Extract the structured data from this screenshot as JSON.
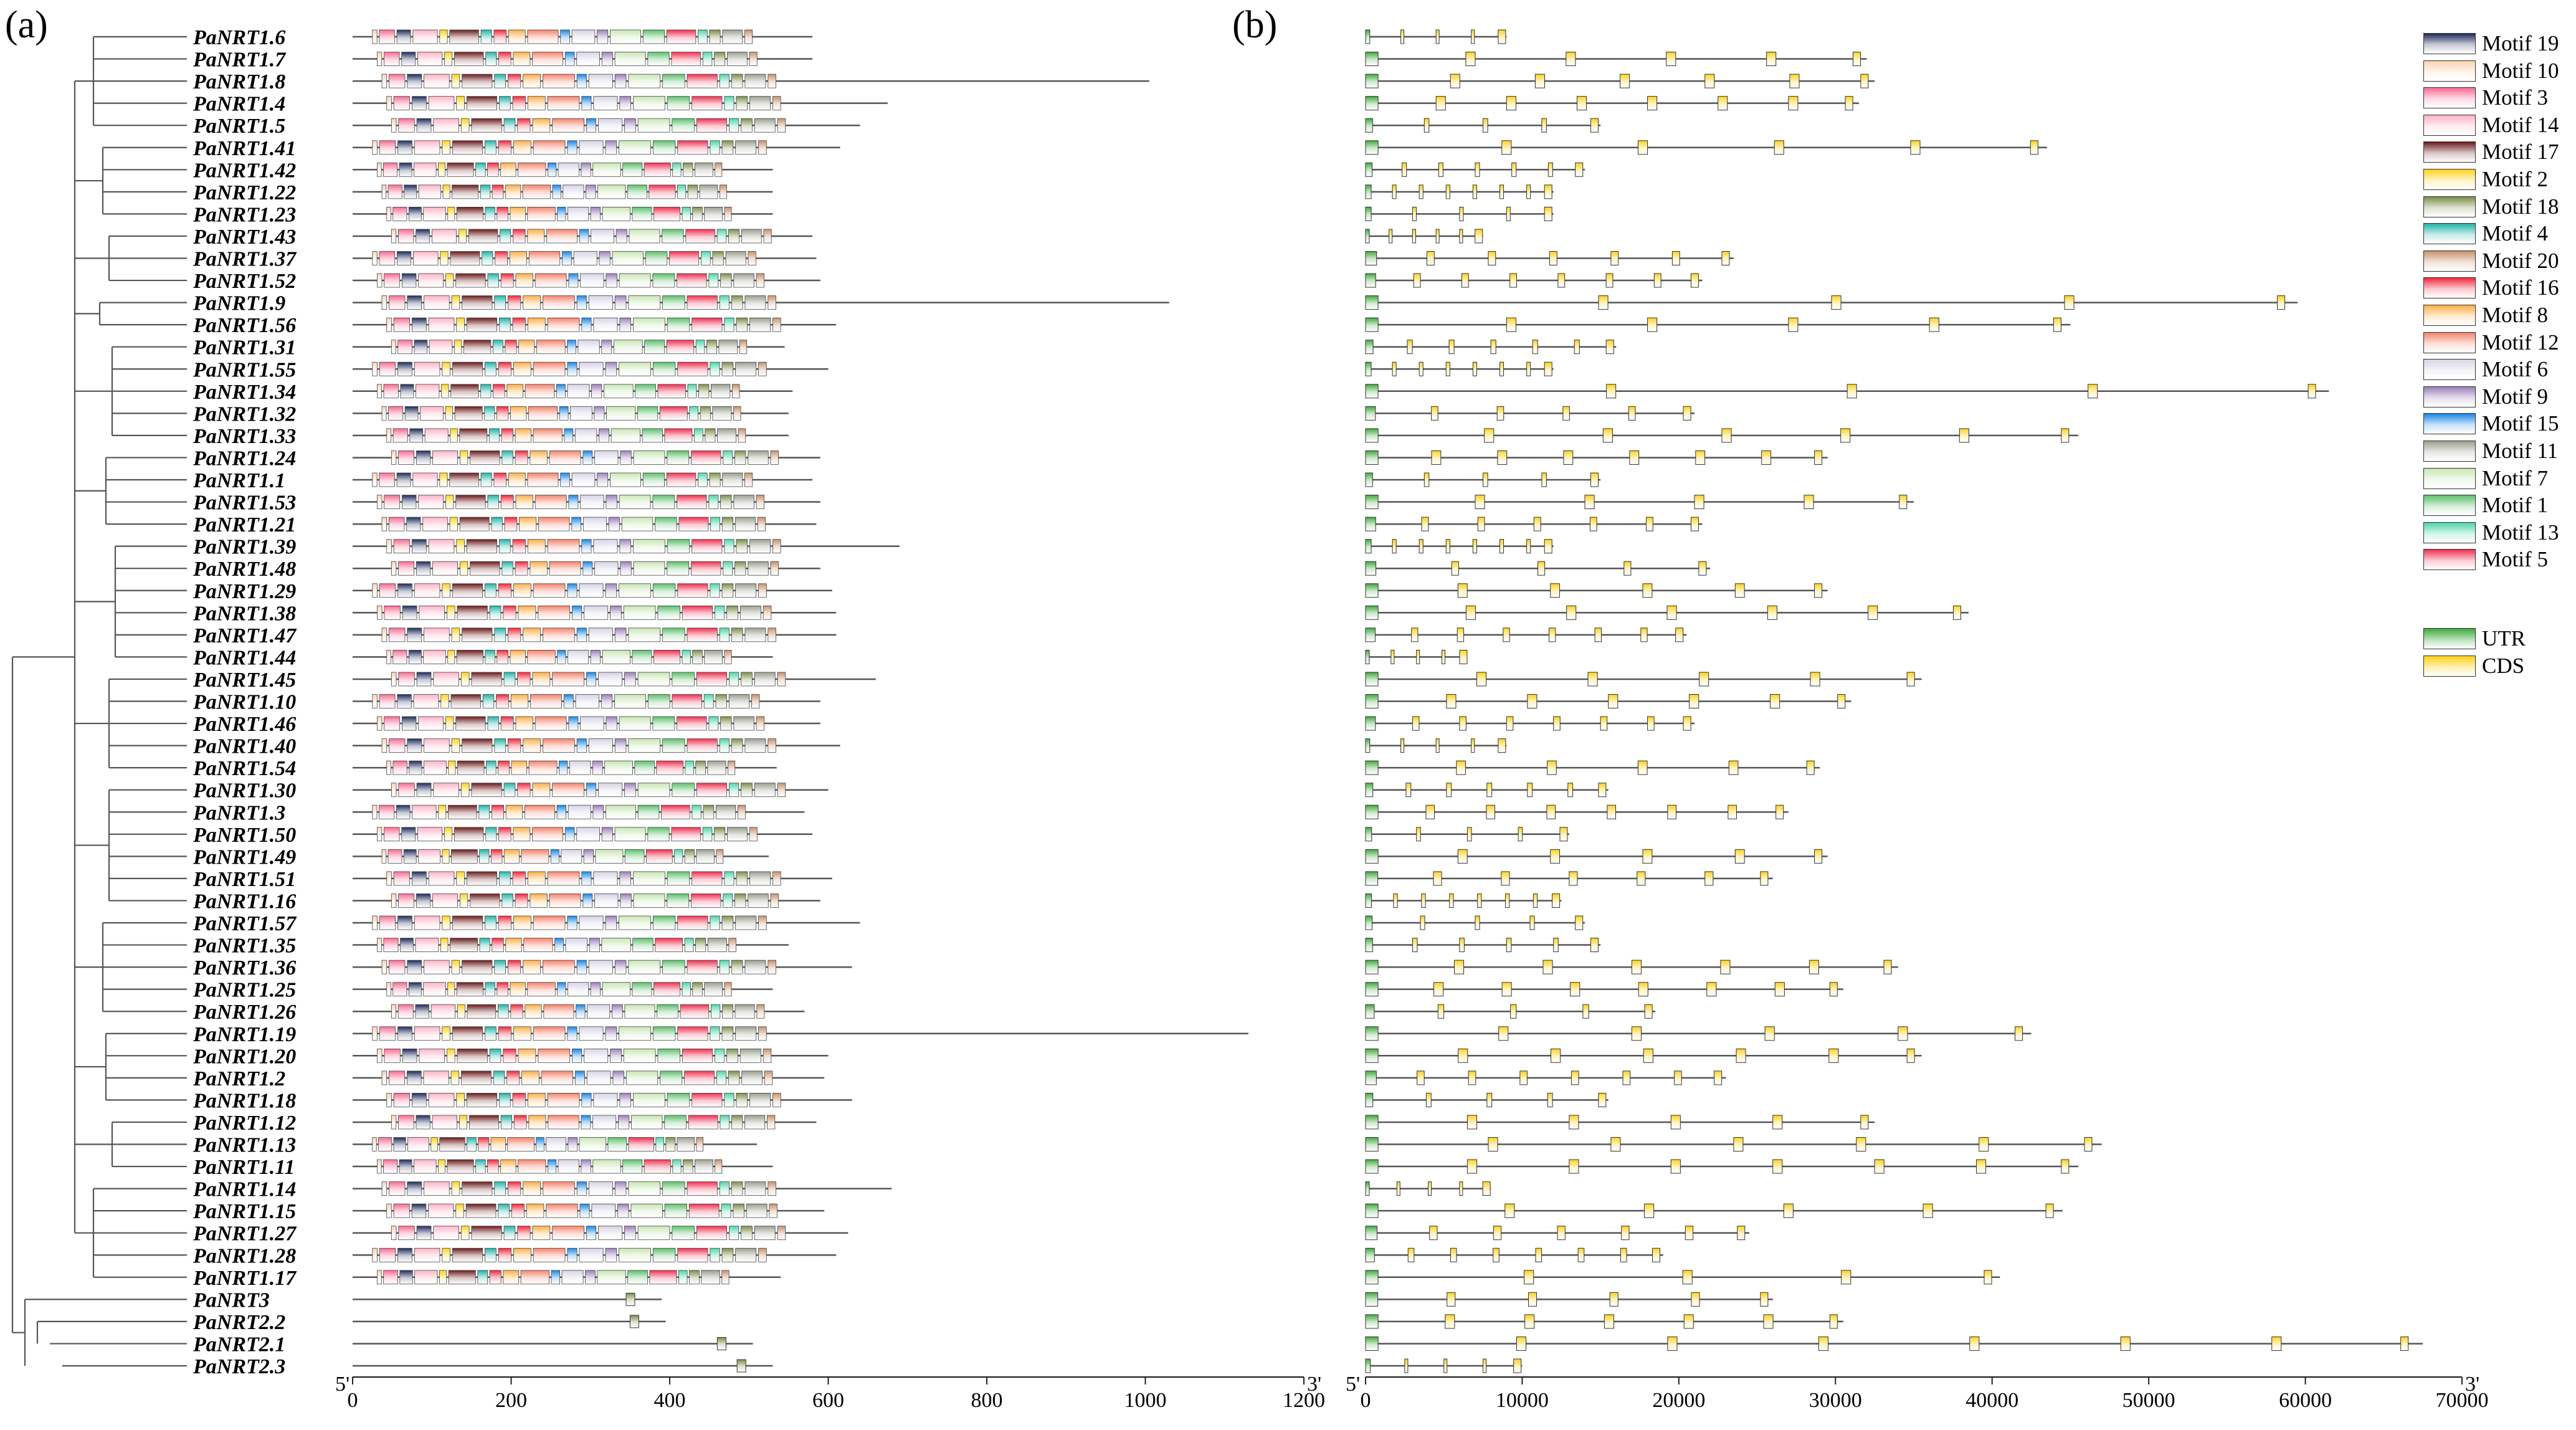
{
  "panels": {
    "a": "(a)",
    "b": "(b)"
  },
  "genes": [
    {
      "name": "PaNRT1.6",
      "len": 580,
      "gene_len": 9000
    },
    {
      "name": "PaNRT1.7",
      "len": 580,
      "gene_len": 32000
    },
    {
      "name": "PaNRT1.8",
      "len": 1005,
      "gene_len": 32500
    },
    {
      "name": "PaNRT1.4",
      "len": 675,
      "gene_len": 31500
    },
    {
      "name": "PaNRT1.5",
      "len": 640,
      "gene_len": 15000
    },
    {
      "name": "PaNRT1.41",
      "len": 615,
      "gene_len": 43500
    },
    {
      "name": "PaNRT1.42",
      "len": 530,
      "gene_len": 14000
    },
    {
      "name": "PaNRT1.22",
      "len": 530,
      "gene_len": 12000
    },
    {
      "name": "PaNRT1.23",
      "len": 530,
      "gene_len": 12000
    },
    {
      "name": "PaNRT1.43",
      "len": 580,
      "gene_len": 7500
    },
    {
      "name": "PaNRT1.37",
      "len": 585,
      "gene_len": 23500
    },
    {
      "name": "PaNRT1.52",
      "len": 590,
      "gene_len": 21500
    },
    {
      "name": "PaNRT1.9",
      "len": 1030,
      "gene_len": 59500
    },
    {
      "name": "PaNRT1.56",
      "len": 610,
      "gene_len": 45000
    },
    {
      "name": "PaNRT1.31",
      "len": 545,
      "gene_len": 16000
    },
    {
      "name": "PaNRT1.55",
      "len": 600,
      "gene_len": 12000
    },
    {
      "name": "PaNRT1.34",
      "len": 555,
      "gene_len": 61500
    },
    {
      "name": "PaNRT1.32",
      "len": 550,
      "gene_len": 21000
    },
    {
      "name": "PaNRT1.33",
      "len": 550,
      "gene_len": 45500
    },
    {
      "name": "PaNRT1.24",
      "len": 590,
      "gene_len": 29500
    },
    {
      "name": "PaNRT1.1",
      "len": 580,
      "gene_len": 15000
    },
    {
      "name": "PaNRT1.53",
      "len": 590,
      "gene_len": 35000
    },
    {
      "name": "PaNRT1.21",
      "len": 585,
      "gene_len": 21500
    },
    {
      "name": "PaNRT1.39",
      "len": 690,
      "gene_len": 12000
    },
    {
      "name": "PaNRT1.48",
      "len": 590,
      "gene_len": 22000
    },
    {
      "name": "PaNRT1.29",
      "len": 605,
      "gene_len": 29500
    },
    {
      "name": "PaNRT1.38",
      "len": 610,
      "gene_len": 38500
    },
    {
      "name": "PaNRT1.47",
      "len": 610,
      "gene_len": 20500
    },
    {
      "name": "PaNRT1.44",
      "len": 530,
      "gene_len": 6500
    },
    {
      "name": "PaNRT1.45",
      "len": 660,
      "gene_len": 35500
    },
    {
      "name": "PaNRT1.10",
      "len": 590,
      "gene_len": 31000
    },
    {
      "name": "PaNRT1.46",
      "len": 590,
      "gene_len": 21000
    },
    {
      "name": "PaNRT1.40",
      "len": 615,
      "gene_len": 9000
    },
    {
      "name": "PaNRT1.54",
      "len": 535,
      "gene_len": 29000
    },
    {
      "name": "PaNRT1.30",
      "len": 600,
      "gene_len": 15500
    },
    {
      "name": "PaNRT1.3",
      "len": 570,
      "gene_len": 27000
    },
    {
      "name": "PaNRT1.50",
      "len": 580,
      "gene_len": 13000
    },
    {
      "name": "PaNRT1.49",
      "len": 525,
      "gene_len": 29500
    },
    {
      "name": "PaNRT1.51",
      "len": 605,
      "gene_len": 26000
    },
    {
      "name": "PaNRT1.16",
      "len": 590,
      "gene_len": 12500
    },
    {
      "name": "PaNRT1.57",
      "len": 640,
      "gene_len": 14000
    },
    {
      "name": "PaNRT1.35",
      "len": 550,
      "gene_len": 15000
    },
    {
      "name": "PaNRT1.36",
      "len": 630,
      "gene_len": 34000
    },
    {
      "name": "PaNRT1.25",
      "len": 530,
      "gene_len": 30500
    },
    {
      "name": "PaNRT1.26",
      "len": 570,
      "gene_len": 18500
    },
    {
      "name": "PaNRT1.19",
      "len": 1130,
      "gene_len": 42500
    },
    {
      "name": "PaNRT1.20",
      "len": 600,
      "gene_len": 35500
    },
    {
      "name": "PaNRT1.2",
      "len": 595,
      "gene_len": 23000
    },
    {
      "name": "PaNRT1.18",
      "len": 630,
      "gene_len": 15500
    },
    {
      "name": "PaNRT1.12",
      "len": 585,
      "gene_len": 32500
    },
    {
      "name": "PaNRT1.13",
      "len": 510,
      "gene_len": 47000
    },
    {
      "name": "PaNRT1.11",
      "len": 530,
      "gene_len": 45500
    },
    {
      "name": "PaNRT1.14",
      "len": 680,
      "gene_len": 8000
    },
    {
      "name": "PaNRT1.15",
      "len": 595,
      "gene_len": 44500
    },
    {
      "name": "PaNRT1.27",
      "len": 625,
      "gene_len": 24500
    },
    {
      "name": "PaNRT1.28",
      "len": 610,
      "gene_len": 19000
    },
    {
      "name": "PaNRT1.17",
      "len": 540,
      "gene_len": 40500
    },
    {
      "name": "PaNRT3",
      "len": 390,
      "gene_len": 26000
    },
    {
      "name": "PaNRT2.2",
      "len": 395,
      "gene_len": 30500
    },
    {
      "name": "PaNRT2.1",
      "len": 505,
      "gene_len": 67500
    },
    {
      "name": "PaNRT2.3",
      "len": 530,
      "gene_len": 10000
    }
  ],
  "axis_a": {
    "ticks": [
      "0",
      "200",
      "400",
      "600",
      "800",
      "1000",
      "1200"
    ],
    "values": [
      0,
      200,
      400,
      600,
      800,
      1000,
      1200
    ],
    "start": "5'",
    "end": "3'"
  },
  "axis_b": {
    "ticks": [
      "0",
      "10000",
      "20000",
      "30000",
      "40000",
      "50000",
      "60000",
      "70000"
    ],
    "values": [
      0,
      10000,
      20000,
      30000,
      40000,
      50000,
      60000,
      70000
    ],
    "start": "5'",
    "end": "3'"
  },
  "motif_legend": [
    {
      "label": "Motif 19",
      "color": "#1f2a5a"
    },
    {
      "label": "Motif 10",
      "color": "#ffd3b4"
    },
    {
      "label": "Motif 3",
      "color": "#f96b93"
    },
    {
      "label": "Motif 14",
      "color": "#ffb3c6"
    },
    {
      "label": "Motif 17",
      "color": "#6b1a1a"
    },
    {
      "label": "Motif 2",
      "color": "#ffd21c"
    },
    {
      "label": "Motif 18",
      "color": "#7a8f4a"
    },
    {
      "label": "Motif 4",
      "color": "#20b4a8"
    },
    {
      "label": "Motif 20",
      "color": "#c9906a"
    },
    {
      "label": "Motif 16",
      "color": "#f3263a"
    },
    {
      "label": "Motif 8",
      "color": "#ffae46"
    },
    {
      "label": "Motif 12",
      "color": "#f5836b"
    },
    {
      "label": "Motif 6",
      "color": "#d6d4e6"
    },
    {
      "label": "Motif 9",
      "color": "#9c7fba"
    },
    {
      "label": "Motif 15",
      "color": "#1a86e6"
    },
    {
      "label": "Motif 11",
      "color": "#9aa08f"
    },
    {
      "label": "Motif 7",
      "color": "#c8e6b3"
    },
    {
      "label": "Motif 1",
      "color": "#5cc06a"
    },
    {
      "label": "Motif 13",
      "color": "#4fd6a6"
    },
    {
      "label": "Motif 5",
      "color": "#ef2f50"
    }
  ],
  "structure_legend": [
    {
      "label": "UTR",
      "color": "#3faa3c"
    },
    {
      "label": "CDS",
      "color": "#ffd21c"
    }
  ]
}
